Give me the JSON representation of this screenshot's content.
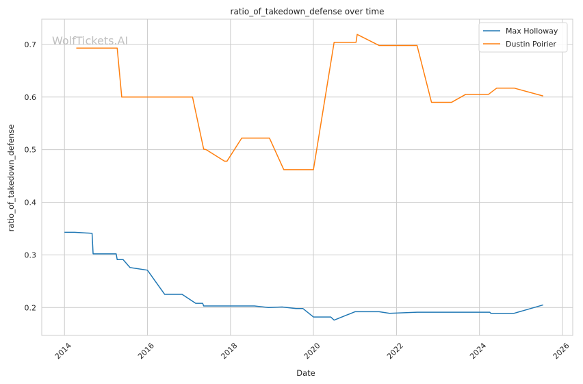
{
  "chart_data": {
    "type": "line",
    "title": "ratio_of_takedown_defense over time",
    "xlabel": "Date",
    "ylabel": "ratio_of_takedown_defense",
    "watermark": "WolfTickets.AI",
    "x_ticks": [
      "2014",
      "2016",
      "2018",
      "2020",
      "2022",
      "2024",
      "2026"
    ],
    "y_ticks": [
      "0.2",
      "0.3",
      "0.4",
      "0.5",
      "0.6",
      "0.7"
    ],
    "xlim": [
      "2013-06-15",
      "2026-04-01"
    ],
    "ylim": [
      0.147,
      0.748
    ],
    "grid": true,
    "legend_position": "top-right",
    "series": [
      {
        "name": "Max Holloway",
        "color": "#1f77b4",
        "x": [
          "2014-01-01",
          "2014-04-01",
          "2014-09-01",
          "2014-09-10",
          "2015-04-01",
          "2015-04-10",
          "2015-06-01",
          "2015-08-01",
          "2016-01-01",
          "2016-06-01",
          "2016-11-01",
          "2017-03-01",
          "2017-05-01",
          "2017-05-10",
          "2017-09-01",
          "2018-01-01",
          "2018-08-01",
          "2018-12-01",
          "2019-04-01",
          "2019-08-01",
          "2019-10-01",
          "2020-01-01",
          "2020-06-01",
          "2020-07-01",
          "2021-01-01",
          "2021-08-01",
          "2021-11-01",
          "2022-07-01",
          "2023-01-01",
          "2023-07-01",
          "2024-04-01",
          "2024-04-10",
          "2024-11-01",
          "2025-07-15"
        ],
        "values": [
          0.343,
          0.343,
          0.341,
          0.302,
          0.302,
          0.291,
          0.291,
          0.276,
          0.271,
          0.225,
          0.225,
          0.208,
          0.208,
          0.203,
          0.203,
          0.203,
          0.203,
          0.2,
          0.201,
          0.198,
          0.198,
          0.182,
          0.182,
          0.176,
          0.192,
          0.192,
          0.189,
          0.191,
          0.191,
          0.191,
          0.191,
          0.189,
          0.189,
          0.205
        ]
      },
      {
        "name": "Dustin Poirier",
        "color": "#ff7f0e",
        "x": [
          "2014-04-15",
          "2015-04-10",
          "2015-05-20",
          "2016-06-01",
          "2017-02-01",
          "2017-05-10",
          "2017-06-01",
          "2017-11-10",
          "2017-12-01",
          "2018-04-10",
          "2018-06-01",
          "2018-12-10",
          "2019-04-15",
          "2019-08-01",
          "2020-01-01",
          "2020-07-01",
          "2021-01-10",
          "2021-01-20",
          "2021-08-01",
          "2022-01-01",
          "2022-07-01",
          "2022-11-05",
          "2023-05-01",
          "2023-09-01",
          "2024-03-20",
          "2024-06-01",
          "2024-11-01",
          "2025-07-15"
        ],
        "values": [
          0.693,
          0.693,
          0.6,
          0.6,
          0.6,
          0.501,
          0.5,
          0.478,
          0.478,
          0.522,
          0.522,
          0.522,
          0.462,
          0.462,
          0.462,
          0.704,
          0.704,
          0.719,
          0.698,
          0.698,
          0.698,
          0.59,
          0.59,
          0.605,
          0.605,
          0.617,
          0.617,
          0.602
        ]
      }
    ]
  }
}
